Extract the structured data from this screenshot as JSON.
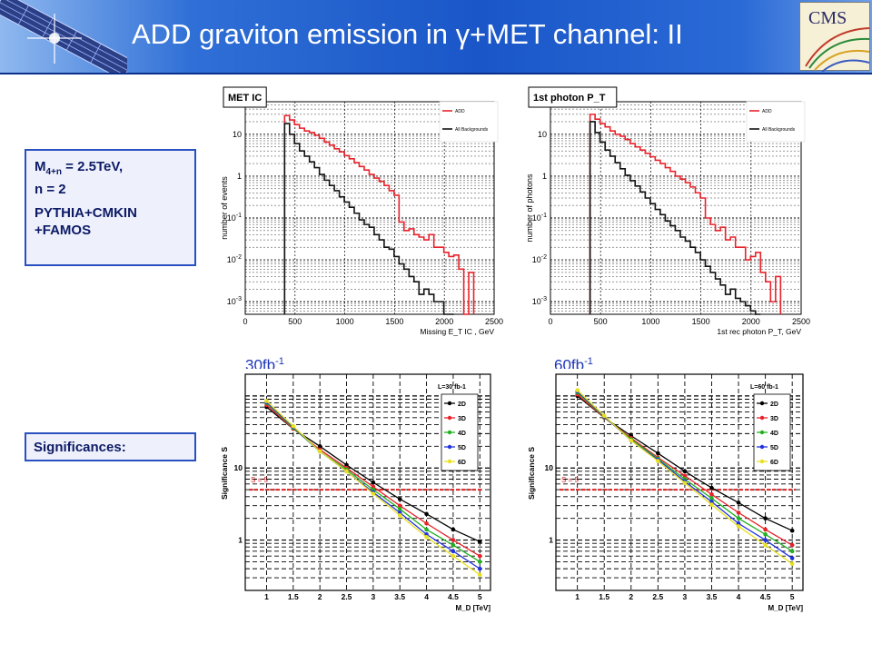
{
  "title": "ADD graviton emission in γ+MET channel: II",
  "logos": {
    "left": "cms-detector-logo",
    "right_text": "CMS"
  },
  "info_box": {
    "mass_prefix": "M",
    "mass_sub": "4+n",
    "mass_suffix": " = 2.5TeV,",
    "n_line": "n = 2",
    "generator_line1": "PYTHIA+CMKIN",
    "generator_line2": "+FAMOS"
  },
  "significances_label": "Significances:",
  "lumi_labels": [
    {
      "text": "30fb",
      "sup": "-1"
    },
    {
      "text": "60fb",
      "sup": "-1"
    }
  ],
  "chart_data": [
    {
      "type": "line",
      "title": "MET IC",
      "xlabel": "Missing E_T IC , GeV",
      "ylabel": "number of events",
      "xlim": [
        0,
        2500
      ],
      "ylim": [
        0.0005,
        60
      ],
      "log_y": true,
      "grid": true,
      "legend": "top-right",
      "xticks": [
        0,
        500,
        1000,
        1500,
        2000,
        2500
      ],
      "ytick_labels": [
        "10",
        "1",
        "10-1",
        "10-2",
        "10-3"
      ],
      "ytick_values": [
        10,
        1,
        0.1,
        0.01,
        0.001
      ],
      "series": [
        {
          "name": "ADD",
          "color": "#e8222a",
          "x": [
            420,
            470,
            520,
            570,
            620,
            670,
            720,
            770,
            820,
            870,
            920,
            970,
            1020,
            1070,
            1120,
            1170,
            1220,
            1270,
            1320,
            1370,
            1420,
            1470,
            1520,
            1570,
            1620,
            1670,
            1720,
            1770,
            1820,
            1870,
            1920,
            1970,
            2020,
            2070,
            2120,
            2170,
            2220,
            2270
          ],
          "y": [
            28,
            22,
            17,
            14,
            12,
            11,
            9.5,
            8,
            6.5,
            5.5,
            4.5,
            3.8,
            3.1,
            2.6,
            2.1,
            1.7,
            1.4,
            1.1,
            0.9,
            0.75,
            0.6,
            0.45,
            0.35,
            0.08,
            0.05,
            0.055,
            0.04,
            0.035,
            0.03,
            0.04,
            0.02,
            0.02,
            0.015,
            0.012,
            0.013,
            0.006,
            0.0004,
            0.005
          ]
        },
        {
          "name": "All Backgrounds",
          "color": "#111111",
          "x": [
            420,
            470,
            520,
            570,
            620,
            670,
            720,
            770,
            820,
            870,
            920,
            970,
            1020,
            1070,
            1120,
            1170,
            1220,
            1270,
            1320,
            1370,
            1420,
            1470,
            1520,
            1570,
            1620,
            1670,
            1720,
            1770,
            1820,
            1870,
            1920,
            1970,
            2020,
            2070
          ],
          "y": [
            18,
            10,
            6,
            4,
            3,
            2.2,
            1.6,
            1.1,
            0.8,
            0.6,
            0.45,
            0.32,
            0.24,
            0.18,
            0.13,
            0.09,
            0.07,
            0.06,
            0.04,
            0.03,
            0.02,
            0.018,
            0.012,
            0.008,
            0.006,
            0.004,
            0.003,
            0.0015,
            0.002,
            0.0015,
            0.001,
            0.001,
            0.0005,
            0.0004
          ]
        }
      ]
    },
    {
      "type": "line",
      "title": "1st photon P_T",
      "xlabel": "1st rec photon P_T, GeV",
      "ylabel": "number of photons",
      "xlim": [
        0,
        2500
      ],
      "ylim": [
        0.0005,
        60
      ],
      "log_y": true,
      "grid": true,
      "legend": "top-right",
      "xticks": [
        0,
        500,
        1000,
        1500,
        2000,
        2500
      ],
      "ytick_labels": [
        "10",
        "1",
        "10-1",
        "10-2",
        "10-3"
      ],
      "ytick_values": [
        10,
        1,
        0.1,
        0.01,
        0.001
      ],
      "series": [
        {
          "name": "ADD",
          "color": "#e8222a",
          "x": [
            420,
            470,
            520,
            570,
            620,
            670,
            720,
            770,
            820,
            870,
            920,
            970,
            1020,
            1070,
            1120,
            1170,
            1220,
            1270,
            1320,
            1370,
            1420,
            1470,
            1520,
            1570,
            1620,
            1670,
            1720,
            1770,
            1820,
            1870,
            1920,
            1970,
            2020,
            2070,
            2120,
            2170,
            2220,
            2270
          ],
          "y": [
            30,
            23,
            18,
            15,
            12,
            10,
            9,
            7.5,
            6,
            5,
            4.2,
            3.5,
            2.9,
            2.4,
            2,
            1.6,
            1.3,
            1,
            0.85,
            0.7,
            0.55,
            0.4,
            0.3,
            0.1,
            0.07,
            0.05,
            0.06,
            0.03,
            0.035,
            0.02,
            0.02,
            0.01,
            0.012,
            0.015,
            0.005,
            0.003,
            0.001,
            0.004
          ]
        },
        {
          "name": "All Backgrounds",
          "color": "#111111",
          "x": [
            420,
            470,
            520,
            570,
            620,
            670,
            720,
            770,
            820,
            870,
            920,
            970,
            1020,
            1070,
            1120,
            1170,
            1220,
            1270,
            1320,
            1370,
            1420,
            1470,
            1520,
            1570,
            1620,
            1670,
            1720,
            1770,
            1820,
            1870,
            1920,
            1970,
            2020,
            2070
          ],
          "y": [
            20,
            11,
            6.5,
            4.2,
            3,
            2.1,
            1.5,
            1.05,
            0.78,
            0.58,
            0.42,
            0.3,
            0.22,
            0.16,
            0.12,
            0.085,
            0.065,
            0.05,
            0.035,
            0.028,
            0.02,
            0.015,
            0.01,
            0.007,
            0.005,
            0.0035,
            0.0025,
            0.0015,
            0.002,
            0.0012,
            0.001,
            0.0008,
            0.0006,
            0.0005
          ]
        }
      ]
    },
    {
      "type": "line",
      "xlabel": "M_D [TeV]",
      "ylabel": "Significance S",
      "xlim": [
        0.6,
        5.2
      ],
      "ylim": [
        0.2,
        200
      ],
      "log_y": true,
      "grid": true,
      "legend": "top-right",
      "legend_title": "L=30 fb-1",
      "xticks": [
        1,
        1.5,
        2,
        2.5,
        3,
        3.5,
        4,
        4.5,
        5
      ],
      "ytick_labels": [
        "10",
        "1"
      ],
      "ytick_values": [
        10,
        1
      ],
      "threshold": {
        "label": "S = 5",
        "value": 5,
        "color": "#e02020"
      },
      "series": [
        {
          "name": "2D",
          "color": "#000000",
          "x": [
            1,
            1.5,
            2,
            2.5,
            3,
            3.5,
            4,
            4.5,
            5
          ],
          "y": [
            70,
            35,
            20,
            11,
            6.3,
            3.7,
            2.3,
            1.4,
            0.95
          ]
        },
        {
          "name": "3D",
          "color": "#e8222a",
          "x": [
            1,
            1.5,
            2,
            2.5,
            3,
            3.5,
            4,
            4.5,
            5
          ],
          "y": [
            75,
            35,
            18,
            10,
            5.5,
            3,
            1.7,
            1.0,
            0.6
          ]
        },
        {
          "name": "4D",
          "color": "#22b022",
          "x": [
            1,
            1.5,
            2,
            2.5,
            3,
            3.5,
            4,
            4.5,
            5
          ],
          "y": [
            80,
            36,
            17,
            9.5,
            5,
            2.7,
            1.4,
            0.85,
            0.5
          ]
        },
        {
          "name": "5D",
          "color": "#2233dd",
          "x": [
            1,
            1.5,
            2,
            2.5,
            3,
            3.5,
            4,
            4.5,
            5
          ],
          "y": [
            82,
            37,
            17,
            9,
            4.6,
            2.4,
            1.2,
            0.7,
            0.4
          ]
        },
        {
          "name": "6D",
          "color": "#e8e020",
          "x": [
            1,
            1.5,
            2,
            2.5,
            3,
            3.5,
            4,
            4.5,
            5
          ],
          "y": [
            85,
            38,
            17,
            9,
            4.4,
            2.2,
            1.1,
            0.6,
            0.33
          ]
        }
      ]
    },
    {
      "type": "line",
      "xlabel": "M_D [TeV]",
      "ylabel": "Significance S",
      "xlim": [
        0.6,
        5.2
      ],
      "ylim": [
        0.2,
        200
      ],
      "log_y": true,
      "grid": true,
      "legend": "top-right",
      "legend_title": "L=60 fb-1",
      "xticks": [
        1,
        1.5,
        2,
        2.5,
        3,
        3.5,
        4,
        4.5,
        5
      ],
      "ytick_labels": [
        "10",
        "1"
      ],
      "ytick_values": [
        10,
        1
      ],
      "threshold": {
        "label": "S = 5",
        "value": 5,
        "color": "#e02020"
      },
      "series": [
        {
          "name": "2D",
          "color": "#000000",
          "x": [
            1,
            1.5,
            2,
            2.5,
            3,
            3.5,
            4,
            4.5,
            5
          ],
          "y": [
            100,
            50,
            28,
            16,
            9,
            5.3,
            3.3,
            2,
            1.35
          ]
        },
        {
          "name": "3D",
          "color": "#e8222a",
          "x": [
            1,
            1.5,
            2,
            2.5,
            3,
            3.5,
            4,
            4.5,
            5
          ],
          "y": [
            105,
            50,
            26,
            14,
            7.8,
            4.3,
            2.4,
            1.4,
            0.85
          ]
        },
        {
          "name": "4D",
          "color": "#22b022",
          "x": [
            1,
            1.5,
            2,
            2.5,
            3,
            3.5,
            4,
            4.5,
            5
          ],
          "y": [
            112,
            51,
            25,
            13.5,
            7,
            3.8,
            2,
            1.2,
            0.7
          ]
        },
        {
          "name": "5D",
          "color": "#2233dd",
          "x": [
            1,
            1.5,
            2,
            2.5,
            3,
            3.5,
            4,
            4.5,
            5
          ],
          "y": [
            116,
            52,
            24,
            13,
            6.5,
            3.4,
            1.7,
            1,
            0.56
          ]
        },
        {
          "name": "6D",
          "color": "#e8e020",
          "x": [
            1,
            1.5,
            2,
            2.5,
            3,
            3.5,
            4,
            4.5,
            5
          ],
          "y": [
            120,
            53,
            24,
            12.5,
            6.2,
            3.1,
            1.55,
            0.85,
            0.47
          ]
        }
      ]
    }
  ]
}
